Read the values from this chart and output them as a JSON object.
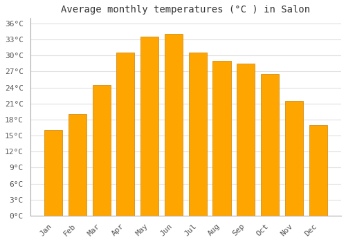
{
  "title": "Average monthly temperatures (°C ) in Salon",
  "months": [
    "Jan",
    "Feb",
    "Mar",
    "Apr",
    "May",
    "Jun",
    "Jul",
    "Aug",
    "Sep",
    "Oct",
    "Nov",
    "Dec"
  ],
  "values": [
    16,
    19,
    24.5,
    30.5,
    33.5,
    34,
    30.5,
    29,
    28.5,
    26.5,
    21.5,
    17
  ],
  "bar_color": "#FFA500",
  "bar_edge_color": "#CC8000",
  "background_color": "#FFFFFF",
  "grid_color": "#E0E0E0",
  "ylim": [
    0,
    37
  ],
  "ytick_step": 3,
  "title_fontsize": 10,
  "tick_fontsize": 8,
  "font_family": "monospace"
}
